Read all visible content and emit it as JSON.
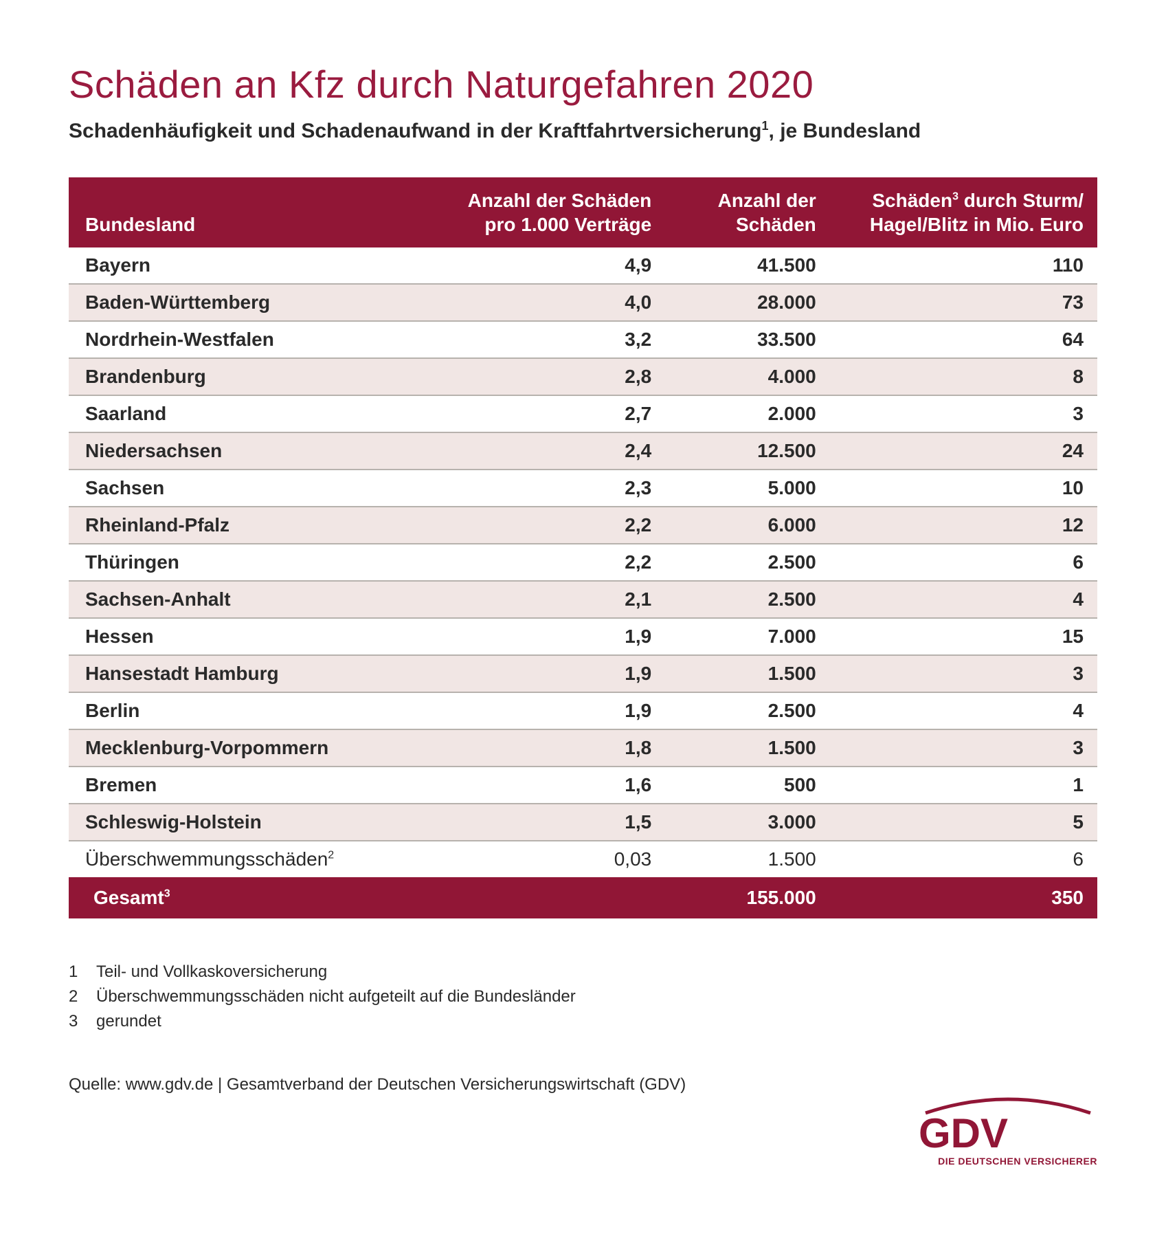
{
  "colors": {
    "brand": "#911636",
    "title": "#9a1b3f",
    "text": "#2a2a2a",
    "row_alt_bg": "#f1e6e4",
    "row_bg": "#ffffff",
    "row_border": "#b7b2ad",
    "page_bg": "#ffffff"
  },
  "typography": {
    "title_fontsize_pt": 42,
    "subtitle_fontsize_pt": 22,
    "table_fontsize_pt": 21,
    "footnote_fontsize_pt": 18,
    "body_weight_bold": 700,
    "body_weight_regular": 400
  },
  "title": "Schäden an Kfz durch Naturgefahren 2020",
  "subtitle_pre": "Schadenhäufigkeit und Schadenaufwand in der Kraftfahrtversicherung",
  "subtitle_sup": "1",
  "subtitle_post": ", je Bundesland",
  "table": {
    "type": "table",
    "columns": [
      {
        "key": "state",
        "label": "Bundesland",
        "align": "left",
        "width_pct": 34
      },
      {
        "key": "per1k",
        "label": "Anzahl der Schäden pro 1.000 Verträge",
        "align": "right",
        "width_pct": 24
      },
      {
        "key": "count",
        "label": "Anzahl der Schäden",
        "align": "right",
        "width_pct": 16
      },
      {
        "key": "euro",
        "label_pre": "Schäden",
        "label_sup": "3",
        "label_post": " durch Sturm/ Hagel/Blitz in Mio. Euro",
        "align": "right",
        "width_pct": 26
      }
    ],
    "rows": [
      {
        "state": "Bayern",
        "per1k": "4,9",
        "count": "41.500",
        "euro": "110"
      },
      {
        "state": "Baden-Württemberg",
        "per1k": "4,0",
        "count": "28.000",
        "euro": "73"
      },
      {
        "state": "Nordrhein-Westfalen",
        "per1k": "3,2",
        "count": "33.500",
        "euro": "64"
      },
      {
        "state": "Brandenburg",
        "per1k": "2,8",
        "count": "4.000",
        "euro": "8"
      },
      {
        "state": "Saarland",
        "per1k": "2,7",
        "count": "2.000",
        "euro": "3"
      },
      {
        "state": "Niedersachsen",
        "per1k": "2,4",
        "count": "12.500",
        "euro": "24"
      },
      {
        "state": "Sachsen",
        "per1k": "2,3",
        "count": "5.000",
        "euro": "10"
      },
      {
        "state": "Rheinland-Pfalz",
        "per1k": "2,2",
        "count": "6.000",
        "euro": "12"
      },
      {
        "state": "Thüringen",
        "per1k": "2,2",
        "count": "2.500",
        "euro": "6"
      },
      {
        "state": "Sachsen-Anhalt",
        "per1k": "2,1",
        "count": "2.500",
        "euro": "4"
      },
      {
        "state": "Hessen",
        "per1k": "1,9",
        "count": "7.000",
        "euro": "15"
      },
      {
        "state": "Hansestadt Hamburg",
        "per1k": "1,9",
        "count": "1.500",
        "euro": "3"
      },
      {
        "state": "Berlin",
        "per1k": "1,9",
        "count": "2.500",
        "euro": "4"
      },
      {
        "state": "Mecklenburg-Vorpommern",
        "per1k": "1,8",
        "count": "1.500",
        "euro": "3"
      },
      {
        "state": "Bremen",
        "per1k": "1,6",
        "count": "500",
        "euro": "1"
      },
      {
        "state": "Schleswig-Holstein",
        "per1k": "1,5",
        "count": "3.000",
        "euro": "5"
      }
    ],
    "flood_row": {
      "label": "Überschwemmungsschäden",
      "sup": "2",
      "per1k": "0,03",
      "count": "1.500",
      "euro": "6"
    },
    "total_row": {
      "label": "Gesamt",
      "sup": "3",
      "per1k": "",
      "count": "155.000",
      "euro": "350"
    }
  },
  "footnotes": [
    {
      "n": "1",
      "text": "Teil- und Vollkaskoversicherung"
    },
    {
      "n": "2",
      "text": "Überschwemmungsschäden nicht aufgeteilt auf die Bundesländer"
    },
    {
      "n": "3",
      "text": "gerundet"
    }
  ],
  "source": "Quelle: www.gdv.de | Gesamtverband der Deutschen Versicherungswirtschaft (GDV)",
  "logo": {
    "text": "GDV",
    "tagline": "DIE DEUTSCHEN VERSICHERER",
    "color": "#911636"
  }
}
